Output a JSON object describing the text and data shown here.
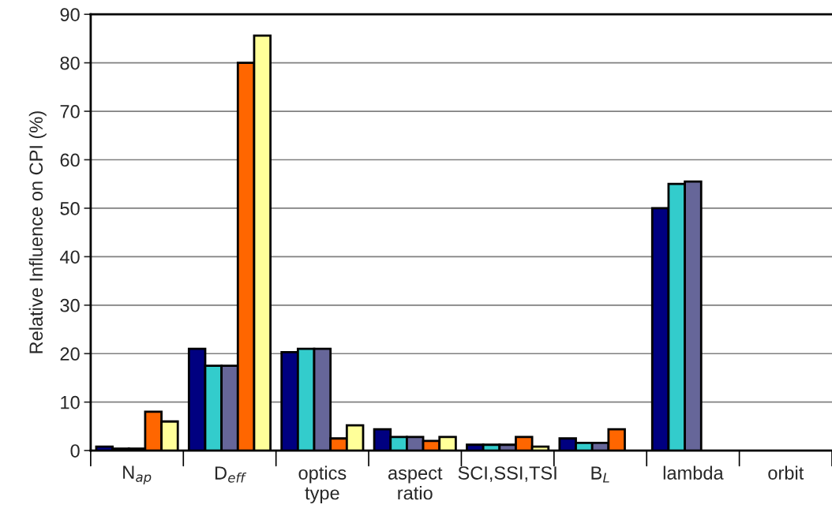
{
  "chart_data": {
    "type": "bar",
    "ylabel": "Relative Influence on CPI (%)",
    "categories": [
      "N$_{ap}$",
      "D$_{eff}$",
      "optics\ntype",
      "aspect\nratio",
      "SCI,SSI,TSI",
      "B$_{L}$",
      "lambda",
      "orbit"
    ],
    "series": [
      {
        "color": "#000080",
        "values": [
          0.8,
          21,
          20.3,
          4.4,
          1.2,
          2.5,
          50,
          null
        ]
      },
      {
        "color": "#33cccc",
        "values": [
          0.4,
          17.5,
          21,
          2.8,
          1.2,
          1.6,
          55,
          null
        ]
      },
      {
        "color": "#666699",
        "values": [
          0.4,
          17.5,
          21,
          2.8,
          1.2,
          1.6,
          55.5,
          null
        ]
      },
      {
        "color": "#ff6600",
        "values": [
          8,
          80,
          2.5,
          2,
          2.8,
          4.4,
          null,
          null
        ]
      },
      {
        "color": "#ffff99",
        "values": [
          6,
          85.6,
          5.2,
          2.8,
          0.8,
          null,
          null,
          null
        ]
      }
    ],
    "ylim": [
      0,
      90
    ],
    "yticks": [
      0,
      10,
      20,
      30,
      40,
      50,
      60,
      70,
      80,
      90
    ],
    "grid": "y",
    "legend": false
  }
}
